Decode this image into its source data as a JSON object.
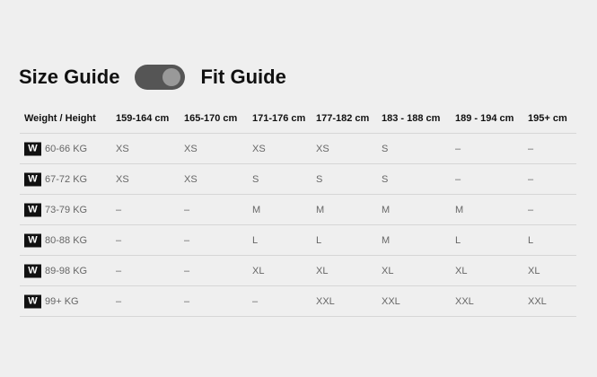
{
  "header": {
    "left_label": "Size Guide",
    "right_label": "Fit Guide",
    "toggle_on": true
  },
  "table": {
    "columns": [
      "Weight / Height",
      "159-164 cm",
      "165-170 cm",
      "171-176 cm",
      "177-182 cm",
      "183 - 188 cm",
      "189 - 194 cm",
      "195+ cm"
    ],
    "badge": "W",
    "rows": [
      {
        "weight": "60-66 KG",
        "sizes": [
          "XS",
          "XS",
          "XS",
          "XS",
          "S",
          "–",
          "–"
        ]
      },
      {
        "weight": "67-72 KG",
        "sizes": [
          "XS",
          "XS",
          "S",
          "S",
          "S",
          "–",
          "–"
        ]
      },
      {
        "weight": "73-79 KG",
        "sizes": [
          "–",
          "–",
          "M",
          "M",
          "M",
          "M",
          "–"
        ]
      },
      {
        "weight": "80-88 KG",
        "sizes": [
          "–",
          "–",
          "L",
          "L",
          "M",
          "L",
          "L"
        ]
      },
      {
        "weight": "89-98 KG",
        "sizes": [
          "–",
          "–",
          "XL",
          "XL",
          "XL",
          "XL",
          "XL"
        ]
      },
      {
        "weight": "99+ KG",
        "sizes": [
          "–",
          "–",
          "–",
          "XXL",
          "XXL",
          "XXL",
          "XXL"
        ]
      }
    ]
  }
}
